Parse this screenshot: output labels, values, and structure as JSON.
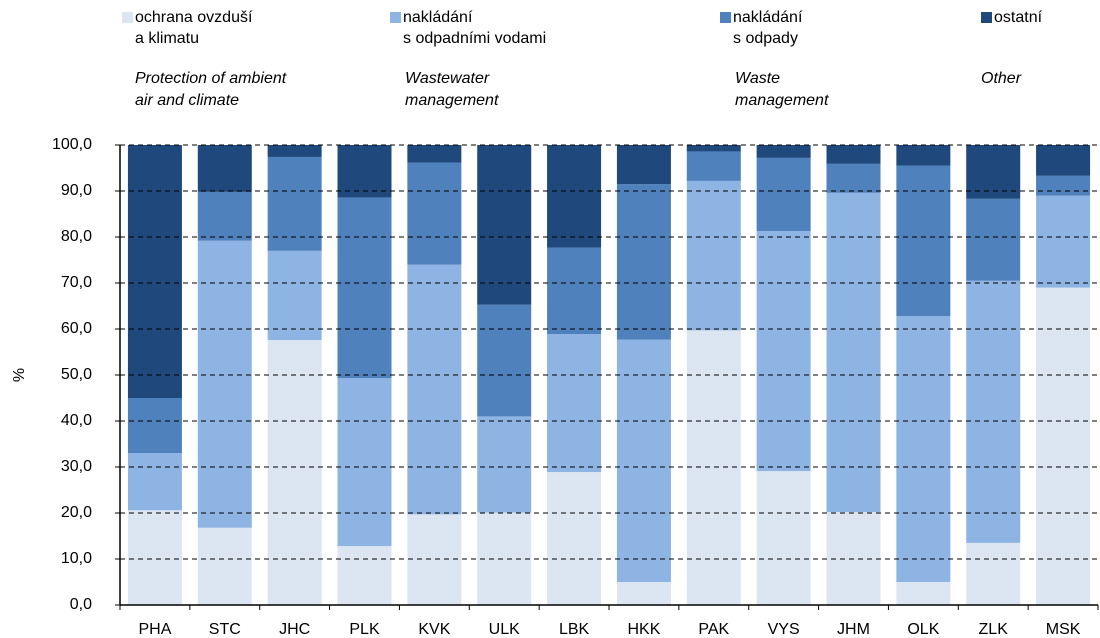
{
  "chart_data": {
    "type": "stacked_bar",
    "y_label": "%",
    "categories": [
      "PHA",
      "STC",
      "JHC",
      "PLK",
      "KVK",
      "ULK",
      "LBK",
      "HKK",
      "PAK",
      "VYS",
      "JHM",
      "OLK",
      "ZLK",
      "MSK"
    ],
    "series": [
      {
        "name": "ochrana ovzduší\na klimatu",
        "name_en": "Protection of ambient\nair  and climate",
        "color": "#dce6f2",
        "values": [
          20.6,
          16.8,
          57.6,
          12.8,
          19.7,
          20.1,
          28.9,
          5.0,
          59.7,
          29.1,
          20.2,
          5.0,
          13.5,
          69.0
        ]
      },
      {
        "name": "nakládání\ns odpadními vodami",
        "name_en": "Wastewater\nmanagement",
        "color": "#8eb4e3",
        "values": [
          12.4,
          62.4,
          19.4,
          36.5,
          54.3,
          20.9,
          30.0,
          52.7,
          32.5,
          52.2,
          69.4,
          57.8,
          57.0,
          20.0
        ]
      },
      {
        "name": "nakládání\ns odpady",
        "name_en": "Waste\nmanagement",
        "color": "#4f81bd",
        "values": [
          12.0,
          10.6,
          20.4,
          39.3,
          22.2,
          24.3,
          18.8,
          33.8,
          6.4,
          15.9,
          6.3,
          32.7,
          17.8,
          4.3
        ]
      },
      {
        "name": "ostatní",
        "name_en": "Other",
        "color": "#1f497d",
        "values": [
          55.0,
          10.2,
          2.6,
          11.4,
          3.8,
          34.7,
          22.3,
          8.5,
          1.4,
          2.8,
          4.1,
          4.5,
          11.7,
          6.7
        ]
      }
    ],
    "ylim": [
      0,
      100
    ],
    "yticks": [
      {
        "value": 0,
        "label": "0,0"
      },
      {
        "value": 10,
        "label": "10,0"
      },
      {
        "value": 20,
        "label": "20,0"
      },
      {
        "value": 30,
        "label": "30,0"
      },
      {
        "value": 40,
        "label": "40,0"
      },
      {
        "value": 50,
        "label": "50,0"
      },
      {
        "value": 60,
        "label": "60,0"
      },
      {
        "value": 70,
        "label": "70,0"
      },
      {
        "value": 80,
        "label": "80,0"
      },
      {
        "value": 90,
        "label": "90,0"
      },
      {
        "value": 100,
        "label": "100,0"
      }
    ],
    "grid": true
  }
}
